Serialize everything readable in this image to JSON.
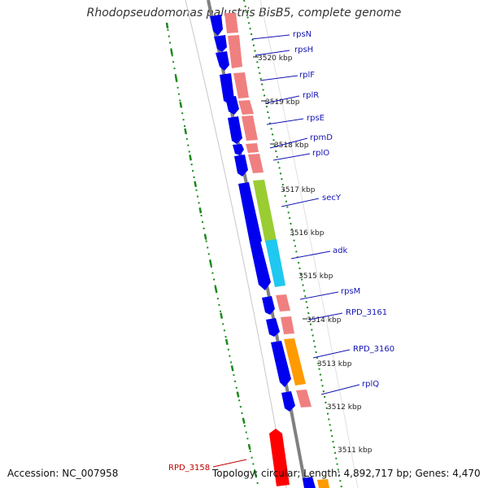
{
  "title": "Rhodopseudomonas palustris BisB5, complete genome",
  "accession": "Accession: NC_007958",
  "topology": "Topology: circular; Length: 4,892,717 bp; Genes: 4,470",
  "colors": {
    "forward_cds": "#0000ee",
    "ribosomal": "#f08080",
    "secY": "#9acd32",
    "adk": "#1ec8f0",
    "orange": "#ff9a00",
    "red_gene": "#ff0000",
    "backbone": "#808080",
    "dotted_ring": "#1a8a1a",
    "label_blue": "#1414b4",
    "label_red": "#c00000"
  },
  "ticks": [
    {
      "label": "3520 kbp"
    },
    {
      "label": "3519 kbp"
    },
    {
      "label": "3518 kbp"
    },
    {
      "label": "3517 kbp"
    },
    {
      "label": "3516 kbp"
    },
    {
      "label": "3515 kbp"
    },
    {
      "label": "3514 kbp"
    },
    {
      "label": "3513 kbp"
    },
    {
      "label": "3512 kbp"
    },
    {
      "label": "3511 kbp"
    }
  ],
  "gene_labels": [
    {
      "text": "rpsN",
      "color": "blue"
    },
    {
      "text": "rpsH",
      "color": "blue"
    },
    {
      "text": "rplF",
      "color": "blue"
    },
    {
      "text": "rplR",
      "color": "blue"
    },
    {
      "text": "rpsE",
      "color": "blue"
    },
    {
      "text": "rpmD",
      "color": "blue"
    },
    {
      "text": "rplO",
      "color": "blue"
    },
    {
      "text": "secY",
      "color": "blue"
    },
    {
      "text": "adk",
      "color": "blue"
    },
    {
      "text": "rpsM",
      "color": "blue"
    },
    {
      "text": "RPD_3161",
      "color": "blue"
    },
    {
      "text": "RPD_3160",
      "color": "blue"
    },
    {
      "text": "rplQ",
      "color": "blue"
    },
    {
      "text": "RPD_3158",
      "color": "red"
    }
  ]
}
